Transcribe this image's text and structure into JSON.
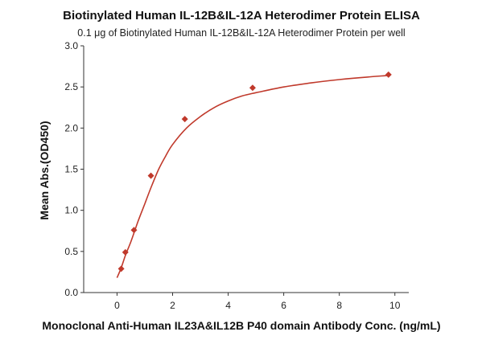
{
  "chart_data": {
    "type": "scatter",
    "title": "Biotinylated Human IL-12B&IL-12A Heterodimer Protein ELISA",
    "subtitle": "0.1 μg of Biotinylated Human IL-12B&IL-12A Heterodimer Protein per well",
    "xlabel": "Monoclonal Anti-Human IL23A&IL12B P40 domain Antibody Conc. (ng/mL)",
    "ylabel": "Mean Abs.(OD450)",
    "xlim": [
      -1.2,
      10.5
    ],
    "ylim": [
      0,
      3.0
    ],
    "x_ticks": [
      "0",
      "2",
      "4",
      "6",
      "8",
      "10"
    ],
    "y_ticks": [
      "0.0",
      "0.5",
      "1.0",
      "1.5",
      "2.0",
      "2.5",
      "3.0"
    ],
    "grid": false,
    "marker": "diamond",
    "color": "#c0392b",
    "series": [
      {
        "x": [
          0.15,
          0.3,
          0.61,
          1.22,
          2.44,
          4.88,
          9.77
        ],
        "y": [
          0.29,
          0.49,
          0.76,
          1.42,
          2.11,
          2.49,
          2.65
        ]
      }
    ],
    "fit_curve": {
      "x": [
        0.0,
        0.15,
        0.3,
        0.5,
        0.75,
        1.0,
        1.25,
        1.5,
        1.75,
        2.0,
        2.5,
        3.0,
        3.5,
        4.0,
        4.5,
        5.0,
        6.0,
        7.0,
        8.0,
        9.0,
        9.77
      ],
      "y": [
        0.18,
        0.3,
        0.45,
        0.62,
        0.86,
        1.08,
        1.3,
        1.5,
        1.66,
        1.8,
        2.0,
        2.14,
        2.25,
        2.33,
        2.39,
        2.43,
        2.5,
        2.55,
        2.59,
        2.62,
        2.64
      ]
    }
  }
}
